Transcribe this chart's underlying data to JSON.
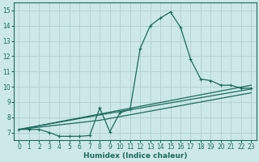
{
  "xlabel": "Humidex (Indice chaleur)",
  "xlim": [
    -0.5,
    23.5
  ],
  "ylim": [
    6.5,
    15.5
  ],
  "yticks": [
    7,
    8,
    9,
    10,
    11,
    12,
    13,
    14,
    15
  ],
  "xticks": [
    0,
    1,
    2,
    3,
    4,
    5,
    6,
    7,
    8,
    9,
    10,
    11,
    12,
    13,
    14,
    15,
    16,
    17,
    18,
    19,
    20,
    21,
    22,
    23
  ],
  "bg_color": "#cde8e8",
  "line_color": "#1a6b5e",
  "grid_color": "#b0d0d0",
  "main_series": [
    [
      0,
      7.2
    ],
    [
      1,
      7.2
    ],
    [
      2,
      7.2
    ],
    [
      3,
      7.0
    ],
    [
      4,
      6.75
    ],
    [
      5,
      6.75
    ],
    [
      6,
      6.75
    ],
    [
      7,
      6.8
    ],
    [
      8,
      8.6
    ],
    [
      9,
      7.05
    ],
    [
      10,
      8.3
    ],
    [
      11,
      8.5
    ],
    [
      12,
      12.5
    ],
    [
      13,
      14.0
    ],
    [
      14,
      14.5
    ],
    [
      15,
      14.9
    ],
    [
      16,
      13.9
    ],
    [
      17,
      11.8
    ],
    [
      18,
      10.5
    ],
    [
      19,
      10.4
    ],
    [
      20,
      10.1
    ],
    [
      21,
      10.1
    ],
    [
      22,
      9.9
    ],
    [
      23,
      9.9
    ]
  ],
  "line2": [
    [
      0,
      7.2
    ],
    [
      23,
      10.1
    ]
  ],
  "line3": [
    [
      0,
      7.2
    ],
    [
      8,
      8.15
    ],
    [
      23,
      9.85
    ]
  ],
  "line4": [
    [
      0,
      7.2
    ],
    [
      8,
      7.8
    ],
    [
      23,
      9.6
    ]
  ]
}
